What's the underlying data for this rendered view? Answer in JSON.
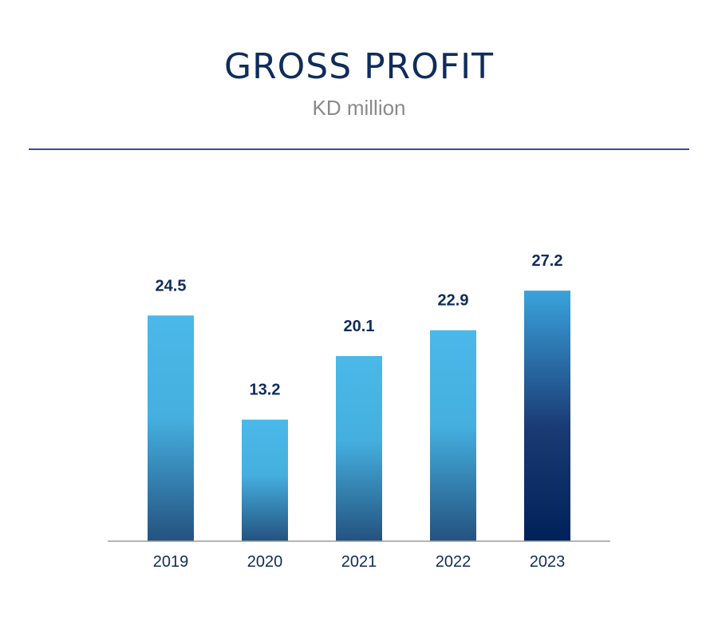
{
  "chart_data": {
    "type": "bar",
    "title": "GROSS PROFIT",
    "subtitle": "KD million",
    "categories": [
      "2019",
      "2020",
      "2021",
      "2022",
      "2023"
    ],
    "values": [
      24.5,
      13.2,
      20.1,
      22.9,
      27.2
    ],
    "value_labels": [
      "24.5",
      "13.2",
      "20.1",
      "22.9",
      "27.2"
    ],
    "xlabel": "",
    "ylabel": "",
    "ylim": [
      0,
      27.2
    ],
    "grid": false,
    "colors": {
      "bar_top": "#4ab8e8",
      "bar_bottom": "#24527f",
      "highlight_top": "#3aa3dc",
      "highlight_bottom": "#00215a",
      "text": "#0f2c5c",
      "axis": "#9b9b9b",
      "rule": "#3e4c95"
    }
  }
}
